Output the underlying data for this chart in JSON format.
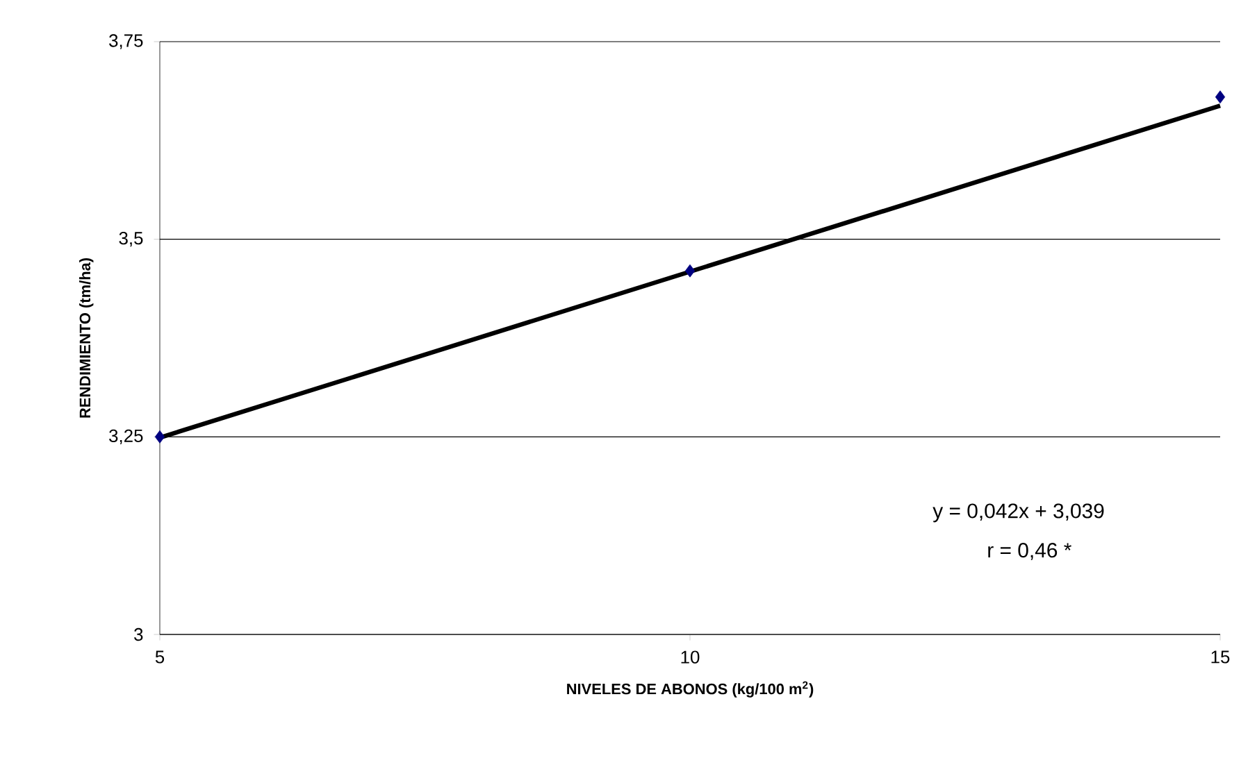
{
  "chart_data": {
    "type": "scatter",
    "xlabel": "NIVELES DE ABONOS (kg/100 m$^{2}$)",
    "ylabel": "RENDIMIENTO (tm/ha)",
    "series": [
      {
        "color": "#000080",
        "marker": "diamond",
        "x": [
          5,
          10,
          15
        ],
        "values": [
          3.25,
          3.46,
          3.68
        ]
      },
      {
        "type": "line",
        "marker": "none",
        "color": "#000000",
        "x": [
          5,
          15
        ],
        "values": [
          3.249,
          3.669
        ]
      }
    ],
    "xlim": [
      5,
      15
    ],
    "xticks": [
      5,
      10,
      15
    ],
    "ylim": [
      3,
      3.75
    ],
    "yticks": [
      3,
      {
        "value": 3.25,
        "label": "3,25"
      },
      {
        "value": 3.5,
        "label": "3,5"
      },
      {
        "value": 3.75,
        "label": "3,75"
      }
    ],
    "grid": "y",
    "line_style": "solid",
    "annotations": [
      "y = 0,042x + 3,039",
      "r = 0,46  *"
    ]
  }
}
